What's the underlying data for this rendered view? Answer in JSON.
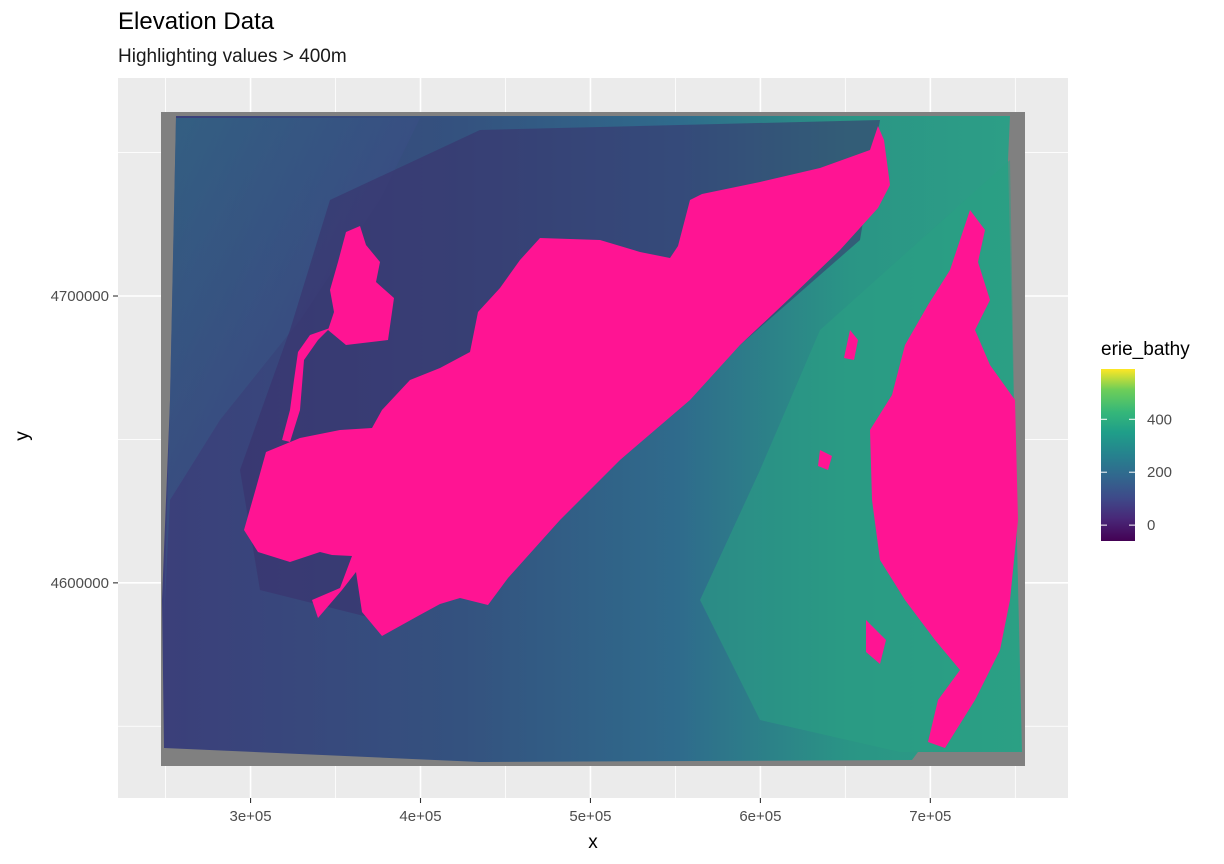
{
  "chart_data": {
    "type": "heatmap",
    "title": "Elevation Data",
    "subtitle": "Highlighting values > 400m",
    "xlabel": "x",
    "ylabel": "y",
    "x_ticks": [
      {
        "value": 300000,
        "label": "3e+05"
      },
      {
        "value": 400000,
        "label": "4e+05"
      },
      {
        "value": 500000,
        "label": "5e+05"
      },
      {
        "value": 600000,
        "label": "6e+05"
      },
      {
        "value": 700000,
        "label": "7e+05"
      }
    ],
    "y_ticks": [
      {
        "value": 4600000,
        "label": "4600000"
      },
      {
        "value": 4700000,
        "label": "4700000"
      }
    ],
    "xlim": [
      222000,
      781000
    ],
    "ylim": [
      4525000,
      4776000
    ],
    "grid": true,
    "legend": {
      "title": "erie_bathy",
      "placement": "right",
      "colormap": "viridis",
      "range": [
        -60,
        590
      ],
      "ticks": [
        {
          "value": 0,
          "label": "0"
        },
        {
          "value": 200,
          "label": "200"
        },
        {
          "value": 400,
          "label": "400"
        }
      ]
    },
    "highlight": {
      "threshold": 400,
      "color": "#ff1493"
    },
    "na_color": "#808080",
    "panel_background": "#ebebeb",
    "raster_extent": {
      "x": [
        249000,
        754000
      ],
      "y": [
        4535000,
        4767000
      ]
    }
  }
}
